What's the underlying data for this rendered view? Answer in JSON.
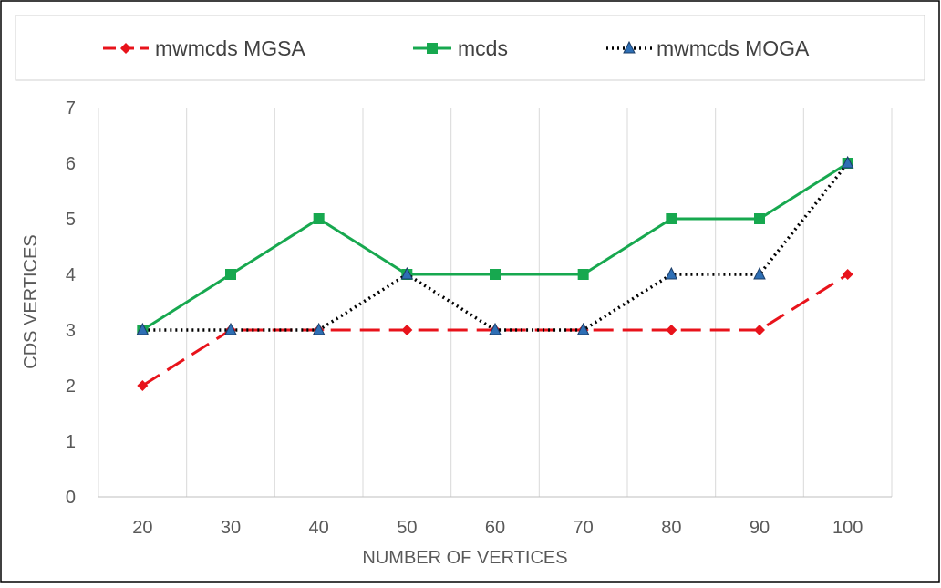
{
  "chart_data": {
    "type": "line",
    "title": "",
    "xlabel": "NUMBER OF VERTICES",
    "ylabel": "CDS VERTICES",
    "categories": [
      "20",
      "30",
      "40",
      "50",
      "60",
      "70",
      "80",
      "90",
      "100"
    ],
    "ylim": [
      0,
      7
    ],
    "yticks": [
      0,
      1,
      2,
      3,
      4,
      5,
      6,
      7
    ],
    "grid": "vertical",
    "legend_position": "top",
    "series": [
      {
        "name": "mwmcds MGSA",
        "color": "#e8131b",
        "line_style": "dashed",
        "marker": "diamond",
        "values": [
          2,
          3,
          3,
          3,
          3,
          3,
          3,
          3,
          4
        ]
      },
      {
        "name": "mcds",
        "color": "#17a84f",
        "line_style": "solid",
        "marker": "square",
        "values": [
          3,
          4,
          5,
          4,
          4,
          4,
          5,
          5,
          6
        ]
      },
      {
        "name": "mwmcds MOGA",
        "color": "#000000",
        "marker_color": "#2e6fb5",
        "line_style": "dotted",
        "marker": "triangle",
        "values": [
          3,
          3,
          3,
          4,
          3,
          3,
          4,
          4,
          6
        ]
      }
    ]
  }
}
